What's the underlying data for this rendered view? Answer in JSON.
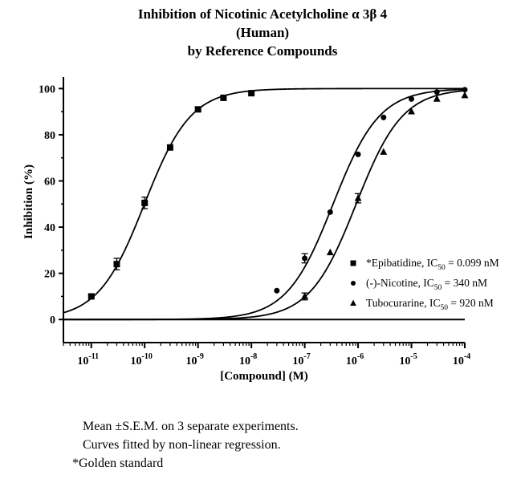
{
  "chart_data": {
    "type": "scatter",
    "title": [
      "Inhibition of Nicotinic Acetylcholine α 3β 4",
      "(Human)",
      "by Reference Compounds"
    ],
    "xlabel": "[Compound] (M)",
    "ylabel": "Inhibition (%)",
    "xscale": "log",
    "xlim": [
      3e-12,
      0.0001
    ],
    "ylim": [
      -10,
      105
    ],
    "x_ticks": [
      {
        "value": 1e-11,
        "base": "10",
        "exp": "-11"
      },
      {
        "value": 1e-10,
        "base": "10",
        "exp": "-10"
      },
      {
        "value": 1e-09,
        "base": "10",
        "exp": "-9"
      },
      {
        "value": 1e-08,
        "base": "10",
        "exp": "-8"
      },
      {
        "value": 1e-07,
        "base": "10",
        "exp": "-7"
      },
      {
        "value": 1e-06,
        "base": "10",
        "exp": "-6"
      },
      {
        "value": 1e-05,
        "base": "10",
        "exp": "-5"
      },
      {
        "value": 0.0001,
        "base": "10",
        "exp": "-4"
      }
    ],
    "y_ticks": [
      0,
      20,
      40,
      60,
      80,
      100
    ],
    "grid": false,
    "legend_position": "bottom-right",
    "series": [
      {
        "name": "*Epibatidine, IC50 = 0.099 nM",
        "legend_prefix": "*Epibatidine, IC",
        "legend_sub": "50",
        "legend_suffix": " = 0.099 nM",
        "marker": "square",
        "ic50": 9.9e-11,
        "hill": 1.0,
        "points": [
          {
            "x": 1e-11,
            "y": 10,
            "err": 0.5
          },
          {
            "x": 3e-11,
            "y": 24,
            "err": 2.5
          },
          {
            "x": 1e-10,
            "y": 50.5,
            "err": 2.5
          },
          {
            "x": 3e-10,
            "y": 74.5,
            "err": 0.8
          },
          {
            "x": 1e-09,
            "y": 91,
            "err": 1
          },
          {
            "x": 3e-09,
            "y": 96,
            "err": 0.5
          },
          {
            "x": 1e-08,
            "y": 98,
            "err": 0.5
          }
        ]
      },
      {
        "name": "(-)-Nicotine, IC50 = 340 nM",
        "legend_prefix": "(-)-Nicotine, IC",
        "legend_sub": "50",
        "legend_suffix": " = 340 nM",
        "marker": "circle",
        "ic50": 3.4e-07,
        "hill": 1.0,
        "points": [
          {
            "x": 3e-08,
            "y": 12.5,
            "err": 0.5
          },
          {
            "x": 1e-07,
            "y": 26.5,
            "err": 2
          },
          {
            "x": 3e-07,
            "y": 46.5,
            "err": 0.5
          },
          {
            "x": 1e-06,
            "y": 71.5,
            "err": 0.5
          },
          {
            "x": 3e-06,
            "y": 87.5,
            "err": 0.5
          },
          {
            "x": 1e-05,
            "y": 95.5,
            "err": 0.5
          },
          {
            "x": 3e-05,
            "y": 98.5,
            "err": 0.5
          },
          {
            "x": 0.0001,
            "y": 99.5,
            "err": 0.5
          }
        ]
      },
      {
        "name": "Tubocurarine, IC50 = 920 nM",
        "legend_prefix": "Tubocurarine, IC",
        "legend_sub": "50",
        "legend_suffix": " = 920 nM",
        "marker": "triangle",
        "ic50": 9.2e-07,
        "hill": 1.0,
        "points": [
          {
            "x": 1e-07,
            "y": 10,
            "err": 1.5
          },
          {
            "x": 3e-07,
            "y": 29,
            "err": 0.5
          },
          {
            "x": 1e-06,
            "y": 52.5,
            "err": 2
          },
          {
            "x": 3e-06,
            "y": 72.5,
            "err": 0.5
          },
          {
            "x": 1e-05,
            "y": 90,
            "err": 0.5
          },
          {
            "x": 3e-05,
            "y": 95.5,
            "err": 0.5
          },
          {
            "x": 0.0001,
            "y": 97,
            "err": 0.5
          }
        ]
      }
    ]
  },
  "notes": {
    "line1": "Mean ±S.E.M. on 3 separate experiments.",
    "line2": "Curves fitted by non-linear regression.",
    "line3": "*Golden standard"
  }
}
